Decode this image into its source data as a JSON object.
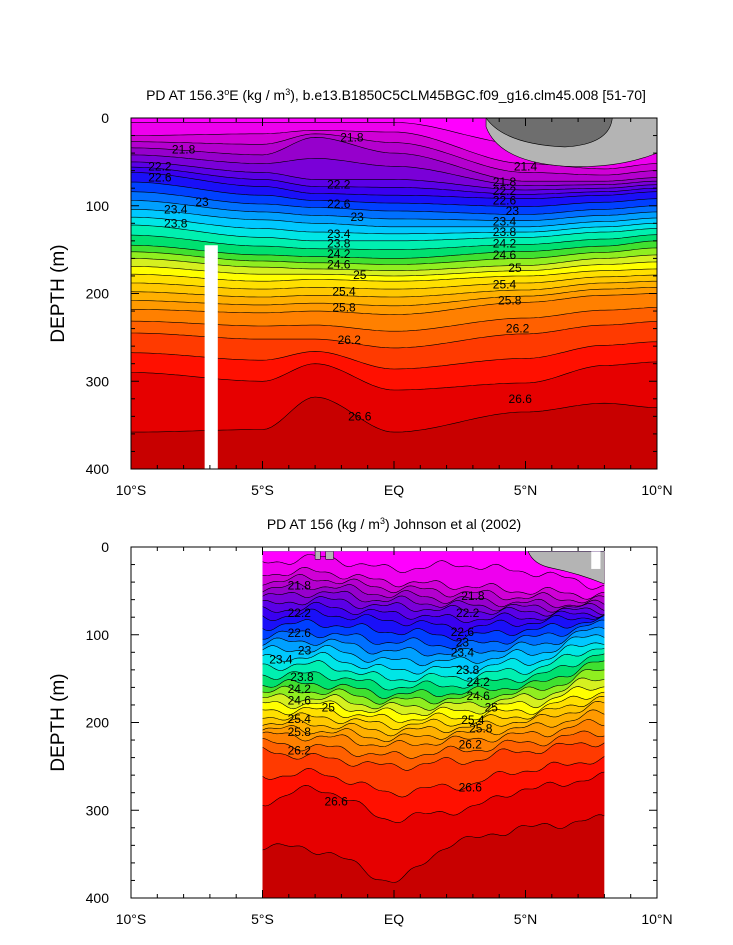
{
  "chart_data": [
    {
      "type": "heatmap",
      "subtype": "filled-contour depth section",
      "title_main": "PD AT 156.3",
      "title_sup": "o",
      "title_after": "E (kg / m",
      "title_exp": "3",
      "title_tail": "), b.e13.B1850C5CLM45BGC.f09_g16.clm45.008 [51-70]",
      "ylabel": "DEPTH (m)",
      "xlim": [
        -10,
        10
      ],
      "ylim": [
        400,
        0
      ],
      "x_ticks": [
        -10,
        -5,
        0,
        5,
        10
      ],
      "x_tick_labels": [
        "10°S",
        "5°S",
        "EQ",
        "5°N",
        "10°N"
      ],
      "y_ticks": [
        0,
        100,
        200,
        300,
        400
      ],
      "y_tick_labels": [
        "0",
        "100",
        "200",
        "300",
        "400"
      ],
      "data_extent_x": [
        -10,
        10
      ],
      "missing_column_x": [
        -7.2,
        -6.7
      ],
      "missing_column_depth_from": 145,
      "contour_levels": [
        21.2,
        21.4,
        21.6,
        21.8,
        22.0,
        22.2,
        22.4,
        22.6,
        22.8,
        23.0,
        23.2,
        23.4,
        23.6,
        23.8,
        24.0,
        24.2,
        24.4,
        24.6,
        24.8,
        25.0,
        25.2,
        25.4,
        25.6,
        25.8,
        26.0,
        26.2,
        26.4,
        26.6,
        26.8
      ],
      "level_depth_knots_x": [
        -10,
        -5,
        -3,
        0,
        5,
        8,
        10
      ],
      "level_depths": {
        "21.2": [
          5,
          5,
          5,
          5,
          30,
          40,
          40
        ],
        "21.4": [
          20,
          18,
          14,
          16,
          52,
          58,
          52
        ],
        "21.8": [
          34,
          42,
          22,
          40,
          72,
          72,
          68
        ],
        "22.2": [
          50,
          62,
          70,
          70,
          82,
          80,
          76
        ],
        "22.6": [
          62,
          78,
          86,
          88,
          92,
          88,
          84
        ],
        "23.0": [
          84,
          98,
          102,
          106,
          110,
          104,
          100
        ],
        "23.4": [
          104,
          116,
          120,
          124,
          124,
          118,
          114
        ],
        "23.8": [
          122,
          136,
          140,
          140,
          136,
          130,
          126
        ],
        "24.2": [
          145,
          156,
          158,
          160,
          152,
          146,
          140
        ],
        "24.6": [
          160,
          170,
          172,
          174,
          168,
          160,
          156
        ],
        "25.0": [
          178,
          186,
          184,
          186,
          180,
          174,
          172
        ],
        "25.4": [
          198,
          204,
          202,
          204,
          196,
          188,
          186
        ],
        "25.8": [
          218,
          222,
          220,
          224,
          210,
          202,
          200
        ],
        "26.2": [
          245,
          252,
          252,
          262,
          246,
          236,
          232
        ],
        "26.6": [
          290,
          300,
          280,
          310,
          302,
          282,
          278
        ],
        "26.8": [
          358,
          355,
          318,
          358,
          335,
          325,
          330
        ]
      },
      "labels": [
        {
          "text": "21.8",
          "x": -8.0,
          "depth": 36
        },
        {
          "text": "21.8",
          "x": -1.6,
          "depth": 22
        },
        {
          "text": "21.4",
          "x": 5.0,
          "depth": 55
        },
        {
          "text": "21.8",
          "x": 4.2,
          "depth": 73
        },
        {
          "text": "22.2",
          "x": 4.2,
          "depth": 83
        },
        {
          "text": "22.6",
          "x": 4.2,
          "depth": 94
        },
        {
          "text": "23",
          "x": 4.5,
          "depth": 106
        },
        {
          "text": "23.4",
          "x": 4.2,
          "depth": 118
        },
        {
          "text": "23.8",
          "x": 4.2,
          "depth": 130
        },
        {
          "text": "24.2",
          "x": 4.2,
          "depth": 143
        },
        {
          "text": "24.6",
          "x": 4.2,
          "depth": 156
        },
        {
          "text": "25",
          "x": 4.6,
          "depth": 171
        },
        {
          "text": "25.4",
          "x": 4.2,
          "depth": 190
        },
        {
          "text": "25.8",
          "x": 4.4,
          "depth": 208
        },
        {
          "text": "26.2",
          "x": 4.7,
          "depth": 240
        },
        {
          "text": "26.6",
          "x": 4.8,
          "depth": 320
        },
        {
          "text": "22.2",
          "x": -8.9,
          "depth": 55
        },
        {
          "text": "22.6",
          "x": -8.9,
          "depth": 68
        },
        {
          "text": "23",
          "x": -7.3,
          "depth": 96
        },
        {
          "text": "23.4",
          "x": -8.3,
          "depth": 104
        },
        {
          "text": "23.8",
          "x": -8.3,
          "depth": 120
        },
        {
          "text": "22.2",
          "x": -2.1,
          "depth": 76
        },
        {
          "text": "22.6",
          "x": -2.1,
          "depth": 98
        },
        {
          "text": "23",
          "x": -1.4,
          "depth": 113
        },
        {
          "text": "23.4",
          "x": -2.1,
          "depth": 132
        },
        {
          "text": "23.8",
          "x": -2.1,
          "depth": 143
        },
        {
          "text": "24.2",
          "x": -2.1,
          "depth": 155
        },
        {
          "text": "24.6",
          "x": -2.1,
          "depth": 167
        },
        {
          "text": "25",
          "x": -1.3,
          "depth": 179
        },
        {
          "text": "25.4",
          "x": -1.9,
          "depth": 198
        },
        {
          "text": "25.8",
          "x": -1.9,
          "depth": 216
        },
        {
          "text": "26.2",
          "x": -1.7,
          "depth": 253
        },
        {
          "text": "26.6",
          "x": -1.3,
          "depth": 340
        }
      ]
    },
    {
      "type": "heatmap",
      "subtype": "filled-contour depth section",
      "title_main": "PD AT 156 (kg / m",
      "title_exp": "3",
      "title_tail": ") Johnson et al (2002)",
      "ylabel": "DEPTH (m)",
      "xlim": [
        -10,
        10
      ],
      "ylim": [
        400,
        0
      ],
      "x_ticks": [
        -10,
        -5,
        0,
        5,
        10
      ],
      "x_tick_labels": [
        "10°S",
        "5°S",
        "EQ",
        "5°N",
        "10°N"
      ],
      "y_ticks": [
        0,
        100,
        200,
        300,
        400
      ],
      "y_tick_labels": [
        "0",
        "100",
        "200",
        "300",
        "400"
      ],
      "data_extent_x": [
        -5,
        8
      ],
      "data_depth_top": 5,
      "contour_levels": [
        21.2,
        21.4,
        21.6,
        21.8,
        22.0,
        22.2,
        22.4,
        22.6,
        22.8,
        23.0,
        23.2,
        23.4,
        23.6,
        23.8,
        24.0,
        24.2,
        24.4,
        24.6,
        24.8,
        25.0,
        25.2,
        25.4,
        25.6,
        25.8,
        26.0,
        26.2,
        26.4,
        26.6,
        26.8
      ],
      "level_depth_knots_x": [
        -5,
        -3,
        0,
        2.5,
        5,
        8
      ],
      "level_depths": {
        "21.2": [
          18,
          12,
          25,
          20,
          28,
          44
        ],
        "21.4": [
          30,
          28,
          40,
          44,
          50,
          55
        ],
        "21.8": [
          48,
          44,
          54,
          60,
          64,
          66
        ],
        "22.2": [
          66,
          60,
          68,
          72,
          74,
          72
        ],
        "22.6": [
          80,
          76,
          84,
          92,
          86,
          78
        ],
        "23.0": [
          100,
          98,
          108,
          112,
          104,
          88
        ],
        "23.4": [
          118,
          116,
          130,
          130,
          122,
          100
        ],
        "23.8": [
          136,
          134,
          150,
          148,
          140,
          114
        ],
        "24.2": [
          156,
          156,
          168,
          166,
          158,
          132
        ],
        "24.6": [
          172,
          172,
          182,
          180,
          172,
          150
        ],
        "25.0": [
          186,
          186,
          196,
          194,
          186,
          166
        ],
        "25.4": [
          200,
          202,
          210,
          206,
          198,
          180
        ],
        "25.8": [
          214,
          216,
          226,
          220,
          214,
          200
        ],
        "26.2": [
          232,
          240,
          250,
          244,
          232,
          222
        ],
        "26.6": [
          290,
          275,
          310,
          300,
          276,
          262
        ],
        "26.8": [
          340,
          345,
          380,
          335,
          320,
          310
        ]
      },
      "labels": [
        {
          "text": "21.8",
          "x": -3.6,
          "depth": 44
        },
        {
          "text": "22.2",
          "x": -3.6,
          "depth": 75
        },
        {
          "text": "22.6",
          "x": -3.6,
          "depth": 98
        },
        {
          "text": "23",
          "x": -3.4,
          "depth": 118
        },
        {
          "text": "23.4",
          "x": -4.3,
          "depth": 128
        },
        {
          "text": "23.8",
          "x": -3.5,
          "depth": 148
        },
        {
          "text": "24.2",
          "x": -3.6,
          "depth": 162
        },
        {
          "text": "24.6",
          "x": -3.6,
          "depth": 175
        },
        {
          "text": "25",
          "x": -2.5,
          "depth": 183
        },
        {
          "text": "25.4",
          "x": -3.6,
          "depth": 196
        },
        {
          "text": "25.8",
          "x": -3.6,
          "depth": 211
        },
        {
          "text": "26.2",
          "x": -3.6,
          "depth": 232
        },
        {
          "text": "26.6",
          "x": -2.2,
          "depth": 290
        },
        {
          "text": "21.8",
          "x": 3.0,
          "depth": 56
        },
        {
          "text": "22.2",
          "x": 2.8,
          "depth": 75
        },
        {
          "text": "22.6",
          "x": 2.6,
          "depth": 97
        },
        {
          "text": "23",
          "x": 2.6,
          "depth": 109
        },
        {
          "text": "23.4",
          "x": 2.6,
          "depth": 120
        },
        {
          "text": "23.8",
          "x": 2.8,
          "depth": 140
        },
        {
          "text": "24.2",
          "x": 3.2,
          "depth": 154
        },
        {
          "text": "24.6",
          "x": 3.2,
          "depth": 170
        },
        {
          "text": "25",
          "x": 3.7,
          "depth": 183
        },
        {
          "text": "25.4",
          "x": 3.0,
          "depth": 197
        },
        {
          "text": "25.8",
          "x": 3.3,
          "depth": 207
        },
        {
          "text": "26.2",
          "x": 2.9,
          "depth": 225
        },
        {
          "text": "26.6",
          "x": 2.9,
          "depth": 274
        }
      ]
    }
  ],
  "palette": [
    "#ff00ff",
    "#ee00ee",
    "#d000d6",
    "#b400ce",
    "#9600cc",
    "#7a00d8",
    "#5a00e6",
    "#3a00f0",
    "#1a10f8",
    "#0040ff",
    "#0070ff",
    "#00a0ff",
    "#00c8ff",
    "#00e6e6",
    "#00f0b0",
    "#00e070",
    "#40e030",
    "#90ee20",
    "#d6f020",
    "#ffff00",
    "#ffe000",
    "#ffc800",
    "#ffb000",
    "#ff9a00",
    "#ff8000",
    "#ff6000",
    "#ff3a00",
    "#ff1000",
    "#e60000",
    "#c80000"
  ],
  "missing_gray": "#b4b4b4",
  "dark_gray": "#6e6e6e"
}
